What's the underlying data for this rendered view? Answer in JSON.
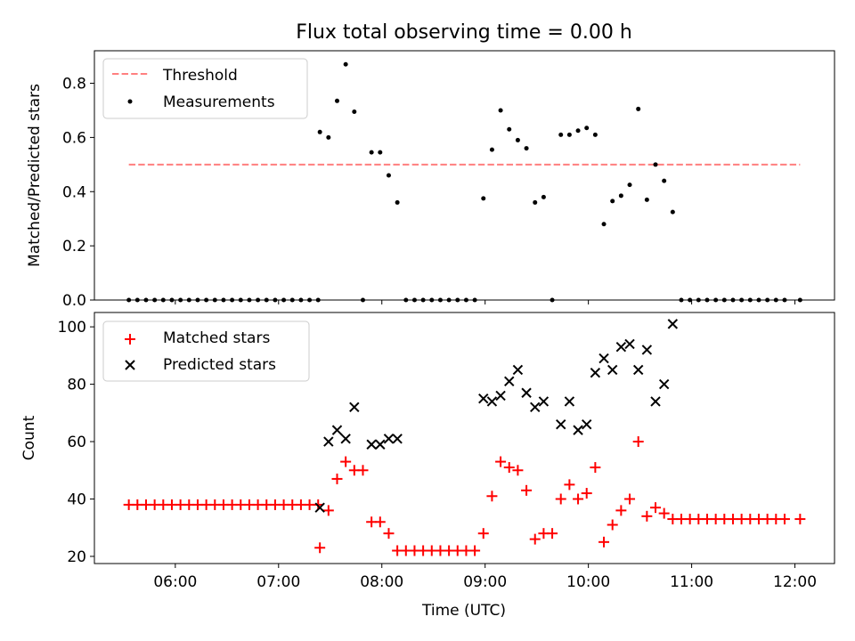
{
  "chart_data": [
    {
      "type": "scatter",
      "title": "Flux total observing time = 0.00 h",
      "xlabel": "",
      "ylabel": "Matched/Predicted stars",
      "xlim": [
        "05:13",
        "12:23"
      ],
      "ylim": [
        0,
        0.92
      ],
      "yticks": [
        "0.0",
        "0.2",
        "0.4",
        "0.6",
        "0.8"
      ],
      "grid": false,
      "legend": "top-left",
      "threshold": {
        "name": "Threshold",
        "value": 0.5,
        "x_from": "05:33",
        "x_to": "12:03",
        "color": "#ff7f7f"
      },
      "series": [
        {
          "name": "Measurements",
          "color": "#000000",
          "points": [
            [
              "05:33",
              0
            ],
            [
              "05:38",
              0
            ],
            [
              "05:43",
              0
            ],
            [
              "05:48",
              0
            ],
            [
              "05:53",
              0
            ],
            [
              "05:58",
              0
            ],
            [
              "06:03",
              0
            ],
            [
              "06:08",
              0
            ],
            [
              "06:13",
              0
            ],
            [
              "06:18",
              0
            ],
            [
              "06:23",
              0
            ],
            [
              "06:28",
              0
            ],
            [
              "06:33",
              0
            ],
            [
              "06:38",
              0
            ],
            [
              "06:43",
              0
            ],
            [
              "06:48",
              0
            ],
            [
              "06:53",
              0
            ],
            [
              "06:58",
              0
            ],
            [
              "07:03",
              0
            ],
            [
              "07:08",
              0
            ],
            [
              "07:13",
              0
            ],
            [
              "07:18",
              0
            ],
            [
              "07:23",
              0
            ],
            [
              "07:24",
              0.62
            ],
            [
              "07:29",
              0.6
            ],
            [
              "07:34",
              0.735
            ],
            [
              "07:39",
              0.87
            ],
            [
              "07:44",
              0.695
            ],
            [
              "07:49",
              0
            ],
            [
              "07:54",
              0.545
            ],
            [
              "07:59",
              0.545
            ],
            [
              "08:04",
              0.46
            ],
            [
              "08:09",
              0.36
            ],
            [
              "08:14",
              0
            ],
            [
              "08:19",
              0
            ],
            [
              "08:24",
              0
            ],
            [
              "08:29",
              0
            ],
            [
              "08:34",
              0
            ],
            [
              "08:39",
              0
            ],
            [
              "08:44",
              0
            ],
            [
              "08:49",
              0
            ],
            [
              "08:54",
              0
            ],
            [
              "08:59",
              0.375
            ],
            [
              "09:04",
              0.555
            ],
            [
              "09:09",
              0.7
            ],
            [
              "09:14",
              0.63
            ],
            [
              "09:19",
              0.59
            ],
            [
              "09:24",
              0.56
            ],
            [
              "09:29",
              0.36
            ],
            [
              "09:34",
              0.38
            ],
            [
              "09:39",
              0
            ],
            [
              "09:44",
              0.61
            ],
            [
              "09:49",
              0.61
            ],
            [
              "09:54",
              0.625
            ],
            [
              "09:59",
              0.635
            ],
            [
              "10:04",
              0.61
            ],
            [
              "10:09",
              0.28
            ],
            [
              "10:14",
              0.365
            ],
            [
              "10:19",
              0.385
            ],
            [
              "10:24",
              0.425
            ],
            [
              "10:29",
              0.705
            ],
            [
              "10:34",
              0.37
            ],
            [
              "10:39",
              0.5
            ],
            [
              "10:44",
              0.44
            ],
            [
              "10:49",
              0.325
            ],
            [
              "10:54",
              0
            ],
            [
              "10:59",
              0
            ],
            [
              "11:04",
              0
            ],
            [
              "11:09",
              0
            ],
            [
              "11:14",
              0
            ],
            [
              "11:19",
              0
            ],
            [
              "11:24",
              0
            ],
            [
              "11:29",
              0
            ],
            [
              "11:34",
              0
            ],
            [
              "11:39",
              0
            ],
            [
              "11:44",
              0
            ],
            [
              "11:49",
              0
            ],
            [
              "11:54",
              0
            ],
            [
              "12:03",
              0
            ]
          ]
        }
      ]
    },
    {
      "type": "scatter",
      "title": "",
      "xlabel": "Time (UTC)",
      "ylabel": "Count",
      "xlim": [
        "05:13",
        "12:23"
      ],
      "ylim": [
        17.5,
        105
      ],
      "xticks": [
        "06:00",
        "07:00",
        "08:00",
        "09:00",
        "10:00",
        "11:00",
        "12:00"
      ],
      "yticks": [
        "20",
        "40",
        "60",
        "80",
        "100"
      ],
      "grid": false,
      "legend": "top-left",
      "series": [
        {
          "name": "Matched stars",
          "marker": "+",
          "color": "#ff0000",
          "points": [
            [
              "05:33",
              38
            ],
            [
              "05:38",
              38
            ],
            [
              "05:43",
              38
            ],
            [
              "05:48",
              38
            ],
            [
              "05:53",
              38
            ],
            [
              "05:58",
              38
            ],
            [
              "06:03",
              38
            ],
            [
              "06:08",
              38
            ],
            [
              "06:13",
              38
            ],
            [
              "06:18",
              38
            ],
            [
              "06:23",
              38
            ],
            [
              "06:28",
              38
            ],
            [
              "06:33",
              38
            ],
            [
              "06:38",
              38
            ],
            [
              "06:43",
              38
            ],
            [
              "06:48",
              38
            ],
            [
              "06:53",
              38
            ],
            [
              "06:58",
              38
            ],
            [
              "07:03",
              38
            ],
            [
              "07:08",
              38
            ],
            [
              "07:13",
              38
            ],
            [
              "07:18",
              38
            ],
            [
              "07:23",
              38
            ],
            [
              "07:24",
              23
            ],
            [
              "07:29",
              36
            ],
            [
              "07:34",
              47
            ],
            [
              "07:39",
              53
            ],
            [
              "07:44",
              50
            ],
            [
              "07:49",
              50
            ],
            [
              "07:54",
              32
            ],
            [
              "07:59",
              32
            ],
            [
              "08:04",
              28
            ],
            [
              "08:09",
              22
            ],
            [
              "08:14",
              22
            ],
            [
              "08:19",
              22
            ],
            [
              "08:24",
              22
            ],
            [
              "08:29",
              22
            ],
            [
              "08:34",
              22
            ],
            [
              "08:39",
              22
            ],
            [
              "08:44",
              22
            ],
            [
              "08:49",
              22
            ],
            [
              "08:54",
              22
            ],
            [
              "08:59",
              28
            ],
            [
              "09:04",
              41
            ],
            [
              "09:09",
              53
            ],
            [
              "09:14",
              51
            ],
            [
              "09:19",
              50
            ],
            [
              "09:24",
              43
            ],
            [
              "09:29",
              26
            ],
            [
              "09:34",
              28
            ],
            [
              "09:39",
              28
            ],
            [
              "09:44",
              40
            ],
            [
              "09:49",
              45
            ],
            [
              "09:54",
              40
            ],
            [
              "09:59",
              42
            ],
            [
              "10:04",
              51
            ],
            [
              "10:09",
              25
            ],
            [
              "10:14",
              31
            ],
            [
              "10:19",
              36
            ],
            [
              "10:24",
              40
            ],
            [
              "10:29",
              60
            ],
            [
              "10:34",
              34
            ],
            [
              "10:39",
              37
            ],
            [
              "10:44",
              35
            ],
            [
              "10:49",
              33
            ],
            [
              "10:54",
              33
            ],
            [
              "10:59",
              33
            ],
            [
              "11:04",
              33
            ],
            [
              "11:09",
              33
            ],
            [
              "11:14",
              33
            ],
            [
              "11:19",
              33
            ],
            [
              "11:24",
              33
            ],
            [
              "11:29",
              33
            ],
            [
              "11:34",
              33
            ],
            [
              "11:39",
              33
            ],
            [
              "11:44",
              33
            ],
            [
              "11:49",
              33
            ],
            [
              "11:54",
              33
            ],
            [
              "12:03",
              33
            ]
          ]
        },
        {
          "name": "Predicted stars",
          "marker": "x",
          "color": "#000000",
          "points": [
            [
              "07:24",
              37
            ],
            [
              "07:29",
              60
            ],
            [
              "07:34",
              64
            ],
            [
              "07:39",
              61
            ],
            [
              "07:44",
              72
            ],
            [
              "07:54",
              59
            ],
            [
              "07:59",
              59
            ],
            [
              "08:04",
              61
            ],
            [
              "08:09",
              61
            ],
            [
              "08:59",
              75
            ],
            [
              "09:04",
              74
            ],
            [
              "09:09",
              76
            ],
            [
              "09:14",
              81
            ],
            [
              "09:19",
              85
            ],
            [
              "09:24",
              77
            ],
            [
              "09:29",
              72
            ],
            [
              "09:34",
              74
            ],
            [
              "09:44",
              66
            ],
            [
              "09:49",
              74
            ],
            [
              "09:54",
              64
            ],
            [
              "09:59",
              66
            ],
            [
              "10:04",
              84
            ],
            [
              "10:09",
              89
            ],
            [
              "10:14",
              85
            ],
            [
              "10:19",
              93
            ],
            [
              "10:24",
              94
            ],
            [
              "10:29",
              85
            ],
            [
              "10:34",
              92
            ],
            [
              "10:39",
              74
            ],
            [
              "10:44",
              80
            ],
            [
              "10:49",
              101
            ]
          ]
        }
      ]
    }
  ]
}
